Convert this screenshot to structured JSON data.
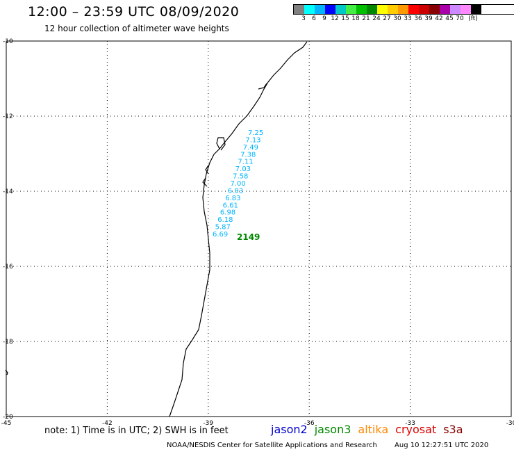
{
  "header": {
    "title": "12:00 – 23:59 UTC 08/09/2020",
    "subtitle": "12 hour collection of altimeter wave heights"
  },
  "color_scale": {
    "swatches": [
      "#808080",
      "#00ffff",
      "#00b4ff",
      "#0000ff",
      "#00c8c8",
      "#44ee44",
      "#00c000",
      "#008800",
      "#ffff00",
      "#ffcc00",
      "#ff9900",
      "#ff0000",
      "#cc0000",
      "#880000",
      "#aa00aa",
      "#cc88ff",
      "#ff88ff",
      "#000000"
    ],
    "labels": [
      "3",
      "6",
      "9",
      "12",
      "15",
      "18",
      "21",
      "24",
      "27",
      "30",
      "33",
      "36",
      "39",
      "42",
      "45",
      "70",
      "(ft)"
    ]
  },
  "map": {
    "lat_labels": [
      "-10",
      "-12",
      "-14",
      "-16",
      "-18",
      "-20"
    ],
    "lon_labels": [
      "-45",
      "-42",
      "-39",
      "-36",
      "-33",
      "-30"
    ]
  },
  "track": {
    "color": "#00b4ff",
    "values": [
      "7.25",
      "7.13",
      "7.49",
      "7.38",
      "7.11",
      "7.03",
      "7.58",
      "7.00",
      "6.93",
      "6.83",
      "6.61",
      "6.98",
      "6.18",
      "5.87",
      "6.69"
    ],
    "pass_label": "2149",
    "pass_color": "#008800"
  },
  "footer": {
    "note": "note: 1) Time is in UTC; 2) SWH is in feet",
    "satellites": [
      {
        "name": "jason2",
        "color": "#0000cc"
      },
      {
        "name": "jason3",
        "color": "#008800"
      },
      {
        "name": "altika",
        "color": "#ff8800"
      },
      {
        "name": "cryosat",
        "color": "#dd0000"
      },
      {
        "name": "s3a",
        "color": "#880000"
      }
    ],
    "credit": "NOAA/NESDIS Center for Satellite Applications and Research",
    "timestamp": "Aug 10 12:27:51 UTC 2020"
  }
}
